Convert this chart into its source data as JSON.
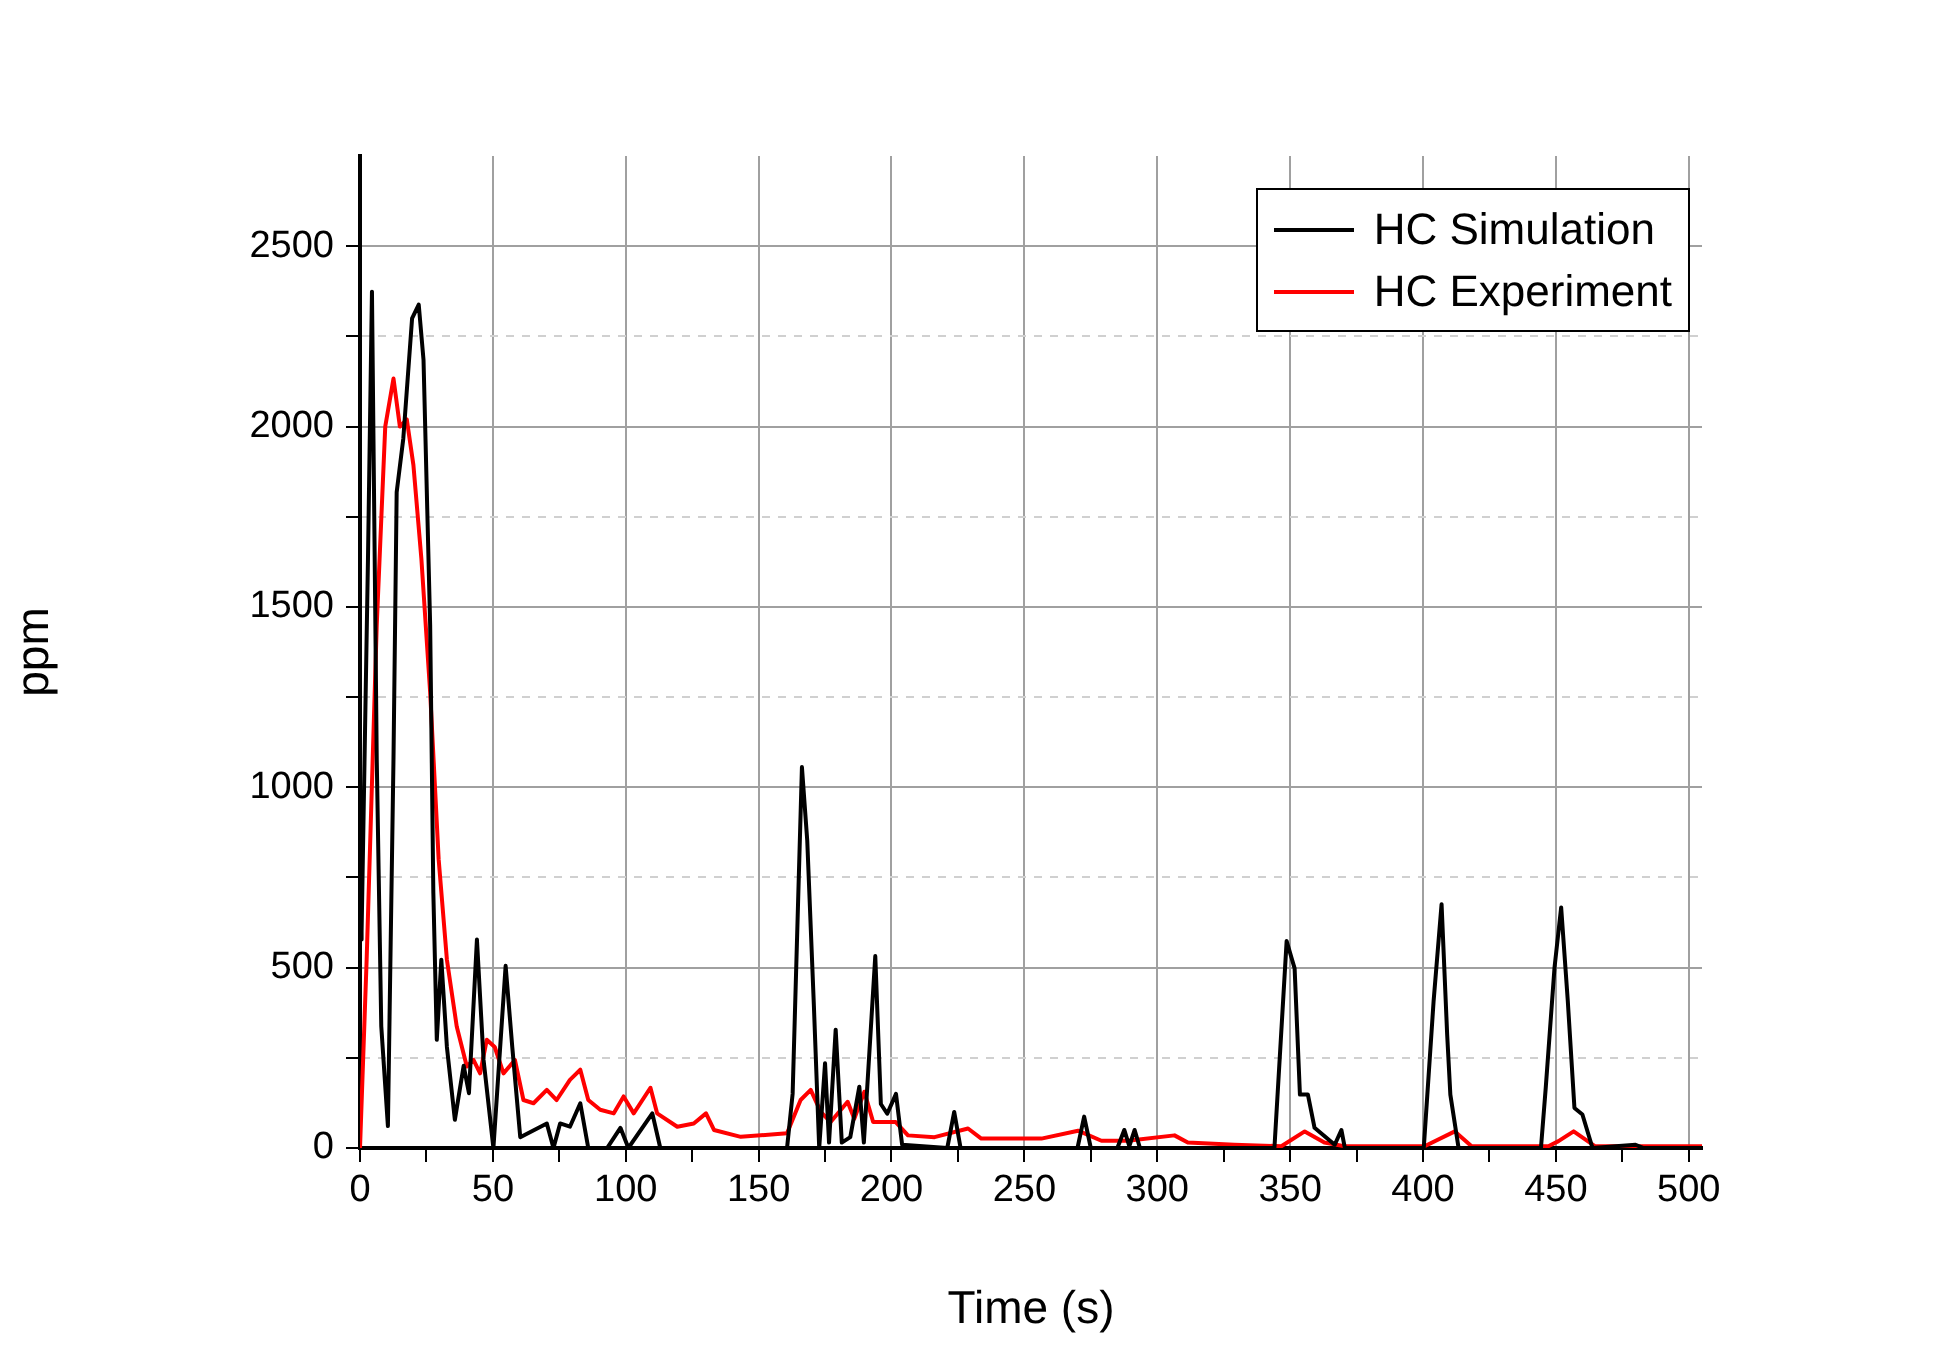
{
  "chart_data": {
    "type": "line",
    "xlabel": "Time (s)",
    "ylabel": "ppm",
    "xlim": [
      0,
      505
    ],
    "ylim": [
      0,
      2750
    ],
    "xticks": [
      0,
      {
        "value": 25,
        "label": null
      },
      50,
      {
        "value": 75,
        "label": null
      },
      100,
      {
        "value": 125,
        "label": null
      },
      150,
      {
        "value": 175,
        "label": null
      },
      200,
      {
        "value": 225,
        "label": null
      },
      250,
      {
        "value": 275,
        "label": null
      },
      300,
      {
        "value": 325,
        "label": null
      },
      350,
      {
        "value": 375,
        "label": null
      },
      400,
      {
        "value": 425,
        "label": null
      },
      450,
      {
        "value": 475,
        "label": null
      },
      500
    ],
    "yticks": [
      0,
      {
        "value": 250,
        "label": null
      },
      500,
      {
        "value": 750,
        "label": null
      },
      1000,
      {
        "value": 1250,
        "label": null
      },
      1500,
      {
        "value": 1750,
        "label": null
      },
      2000,
      {
        "value": 2250,
        "label": null
      },
      2500
    ],
    "grid": true,
    "legend": "top right",
    "marker": "none",
    "line_style": "solid",
    "series": [
      {
        "name": "HC Simulation",
        "color": "#000000",
        "x": [
          0,
          0.6,
          3,
          4.5,
          6.3,
          8,
          10.5,
          12.6,
          13.8,
          16.3,
          19.6,
          22.1,
          23.9,
          26.4,
          27.6,
          28.9,
          30.6,
          32.7,
          35.7,
          39,
          41,
          44,
          46.5,
          50.2,
          54.8,
          57.3,
          60.3,
          70.3,
          72.8,
          75.3,
          79,
          82.9,
          85.9,
          93,
          98,
          101,
          110,
          113,
          160.7,
          162.8,
          166.3,
          168.3,
          170.8,
          172.8,
          175,
          176.5,
          179,
          181.3,
          184.5,
          187.9,
          189.6,
          193.9,
          196,
          198.4,
          201.7,
          204,
          221,
          223.6,
          226,
          270,
          272.5,
          275,
          285,
          287.6,
          289.5,
          291.5,
          293.5,
          344.1,
          348.7,
          350.5,
          351.7,
          353.7,
          356.7,
          359.2,
          366.8,
          369.3,
          370.6,
          400.3,
          404,
          407,
          409.1,
          410.3,
          413.4,
          444.4,
          446.2,
          449.5,
          452,
          454.5,
          457,
          460,
          463.8,
          480,
          483,
          505
        ],
        "values": [
          578,
          600,
          1633,
          2374,
          1078,
          338,
          61,
          1078,
          1818,
          1967,
          2300,
          2338,
          2185,
          1450,
          707,
          300,
          522,
          280,
          78,
          228,
          152,
          578,
          244,
          0,
          505,
          280,
          30,
          68,
          0,
          68,
          59,
          124,
          0,
          0,
          56,
          0,
          96,
          0,
          0,
          150,
          1056,
          852,
          394,
          0,
          235,
          15,
          328,
          15,
          30,
          170,
          15,
          532,
          122,
          95,
          150,
          9,
          0,
          100,
          0,
          0,
          87,
          0,
          0,
          50,
          5,
          50,
          0,
          0,
          574,
          528,
          498,
          148,
          148,
          56,
          9,
          50,
          0,
          0,
          407,
          676,
          315,
          148,
          0,
          0,
          167,
          500,
          667,
          407,
          111,
          93,
          0,
          9,
          0,
          0
        ]
      },
      {
        "name": "HC Experiment",
        "color": "#ff0000",
        "x": [
          0,
          2.5,
          6.3,
          9.5,
          12.6,
          15,
          17.6,
          20.1,
          23.1,
          26.4,
          29.6,
          32.7,
          36.4,
          40.2,
          42.7,
          45.2,
          47.7,
          50.7,
          54,
          58.3,
          61.5,
          65.3,
          70.3,
          74,
          79,
          82.9,
          85.9,
          90.4,
          95.5,
          99.2,
          103,
          109.3,
          111.8,
          119.4,
          125.6,
          130.2,
          133.2,
          143.3,
          160.7,
          165.8,
          169.6,
          173.4,
          177.1,
          183.5,
          186,
          189.8,
          193.1,
          201.6,
          206.2,
          216.2,
          228.8,
          233.8,
          256.4,
          270.2,
          279,
          289,
          306.5,
          311.5,
          329,
          346.7,
          355.5,
          362.9,
          370.4,
          400.6,
          412,
          418.3,
          447.2,
          451,
          456.7,
          464.7,
          505
        ],
        "values": [
          0,
          522,
          1450,
          2000,
          2133,
          2000,
          2020,
          1893,
          1633,
          1263,
          800,
          522,
          337,
          226,
          244,
          207,
          300,
          280,
          207,
          244,
          133,
          124,
          161,
          133,
          189,
          217,
          133,
          106,
          96,
          143,
          96,
          167,
          96,
          59,
          68,
          96,
          50,
          31,
          41,
          133,
          161,
          100,
          72,
          128,
          81,
          156,
          72,
          72,
          35,
          30,
          54,
          26,
          26,
          48,
          20,
          20,
          35,
          15,
          9,
          5,
          46,
          15,
          5,
          5,
          46,
          5,
          5,
          19,
          46,
          5,
          5
        ]
      }
    ]
  }
}
